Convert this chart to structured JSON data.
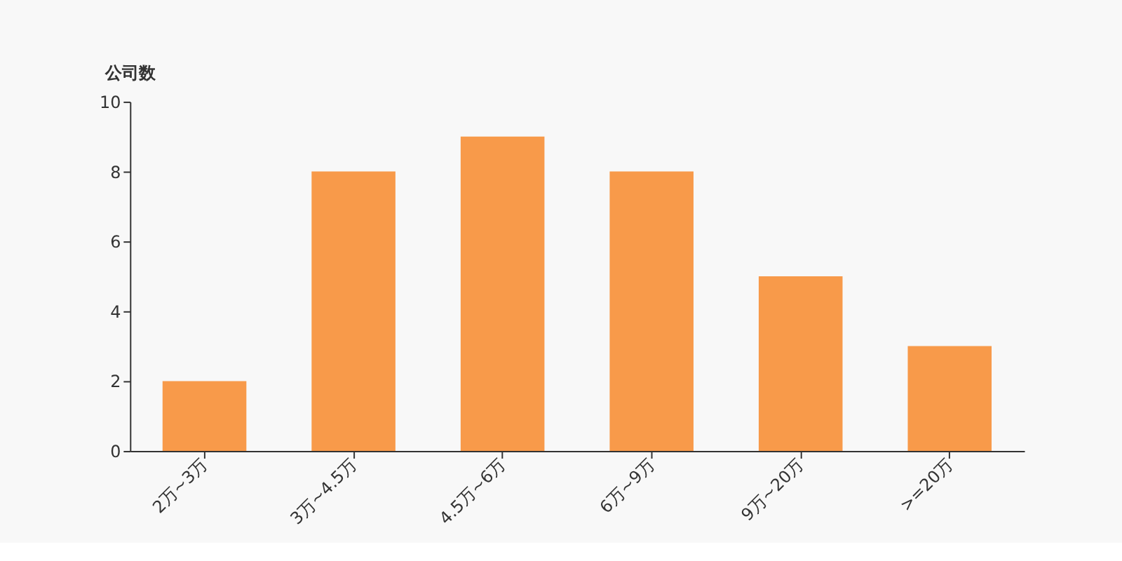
{
  "chart_data": {
    "type": "bar",
    "ylabel": "公司数",
    "categories": [
      "2万~3万",
      "3万~4.5万",
      "4.5万~6万",
      "6万~9万",
      "9万~20万",
      ">=20万"
    ],
    "values": [
      2,
      8,
      9,
      8,
      5,
      3
    ],
    "color": "#f89a4a",
    "ylim": [
      0,
      10
    ],
    "yticks": [
      0,
      2,
      4,
      6,
      8,
      10
    ],
    "grid": false
  }
}
